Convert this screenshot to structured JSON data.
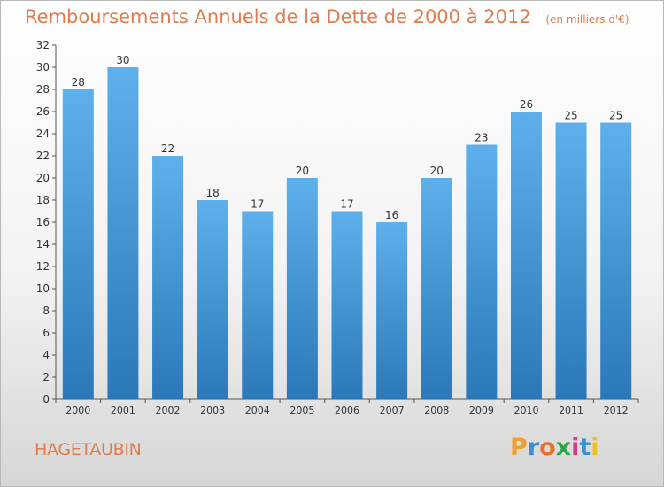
{
  "header": {
    "title": "Remboursements Annuels de la Dette de 2000 à 2012",
    "unit": "(en milliers d'€)"
  },
  "footer": {
    "commune": "HAGETAUBIN",
    "brand": "Proxiti",
    "brand_colors": [
      "#f0a030",
      "#3a8fd0",
      "#e8702a",
      "#2aa848",
      "#d83a8a",
      "#3a8fd0",
      "#f0c020"
    ]
  },
  "colors": {
    "title": "#e07b4b",
    "bar_top": "#5eb0ec",
    "bar_bottom": "#2a78b8",
    "axis": "#555555"
  },
  "chart_data": {
    "type": "bar",
    "categories": [
      "2000",
      "2001",
      "2002",
      "2003",
      "2004",
      "2005",
      "2006",
      "2007",
      "2008",
      "2009",
      "2010",
      "2011",
      "2012"
    ],
    "values": [
      28,
      30,
      22,
      18,
      17,
      20,
      17,
      16,
      20,
      23,
      26,
      25,
      25
    ],
    "labels": [
      "28",
      "30",
      "22",
      "18",
      "17",
      "20",
      "17",
      "16",
      "20",
      "23",
      "26",
      "25",
      "25"
    ],
    "title": "Remboursements Annuels de la Dette de 2000 à 2012",
    "xlabel": "",
    "ylabel": "",
    "ylim": [
      0,
      32
    ],
    "yticks": [
      "0",
      "2",
      "4",
      "6",
      "8",
      "10",
      "12",
      "14",
      "16",
      "18",
      "20",
      "22",
      "24",
      "26",
      "28",
      "30",
      "32"
    ],
    "grid": false,
    "legend": "none"
  }
}
